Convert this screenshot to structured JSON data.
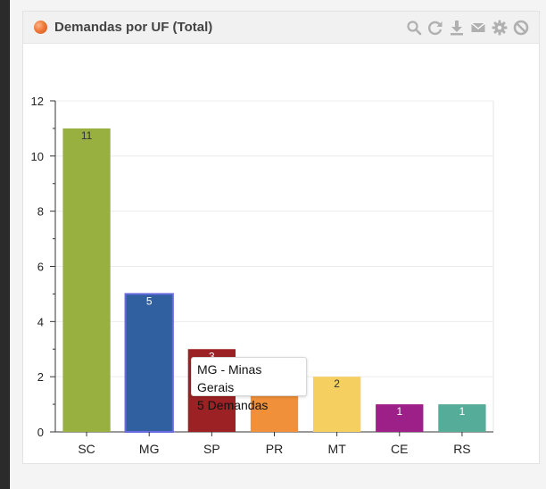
{
  "widget": {
    "title": "Demandas por UF (Total)",
    "toolbar": [
      {
        "name": "search",
        "icon": "search-icon"
      },
      {
        "name": "refresh",
        "icon": "refresh-icon"
      },
      {
        "name": "download",
        "icon": "download-icon"
      },
      {
        "name": "email",
        "icon": "email-icon"
      },
      {
        "name": "settings",
        "icon": "gear-icon"
      },
      {
        "name": "close",
        "icon": "ban-icon"
      }
    ],
    "icon_color": "#b0b0b0",
    "header_dot_color": "#f07a3a"
  },
  "tooltip": {
    "line1": "MG - Minas Gerais",
    "line2": "5 Demandas"
  },
  "chart_data": {
    "type": "bar",
    "title": "",
    "xlabel": "",
    "ylabel": "",
    "categories": [
      "SC",
      "MG",
      "SP",
      "PR",
      "MT",
      "CE",
      "RS"
    ],
    "values": [
      11,
      5,
      3,
      2,
      2,
      1,
      1
    ],
    "colors": [
      "#97b040",
      "#3060a0",
      "#9b2124",
      "#f0903a",
      "#f5d060",
      "#9d2088",
      "#55ac98"
    ],
    "highlighted_category": "MG",
    "highlight_border_color": "#6a6ae0",
    "ylim": [
      0,
      12
    ],
    "yticks": [
      0,
      2,
      4,
      6,
      8,
      10,
      12
    ],
    "grid": true,
    "data_labels": true
  }
}
